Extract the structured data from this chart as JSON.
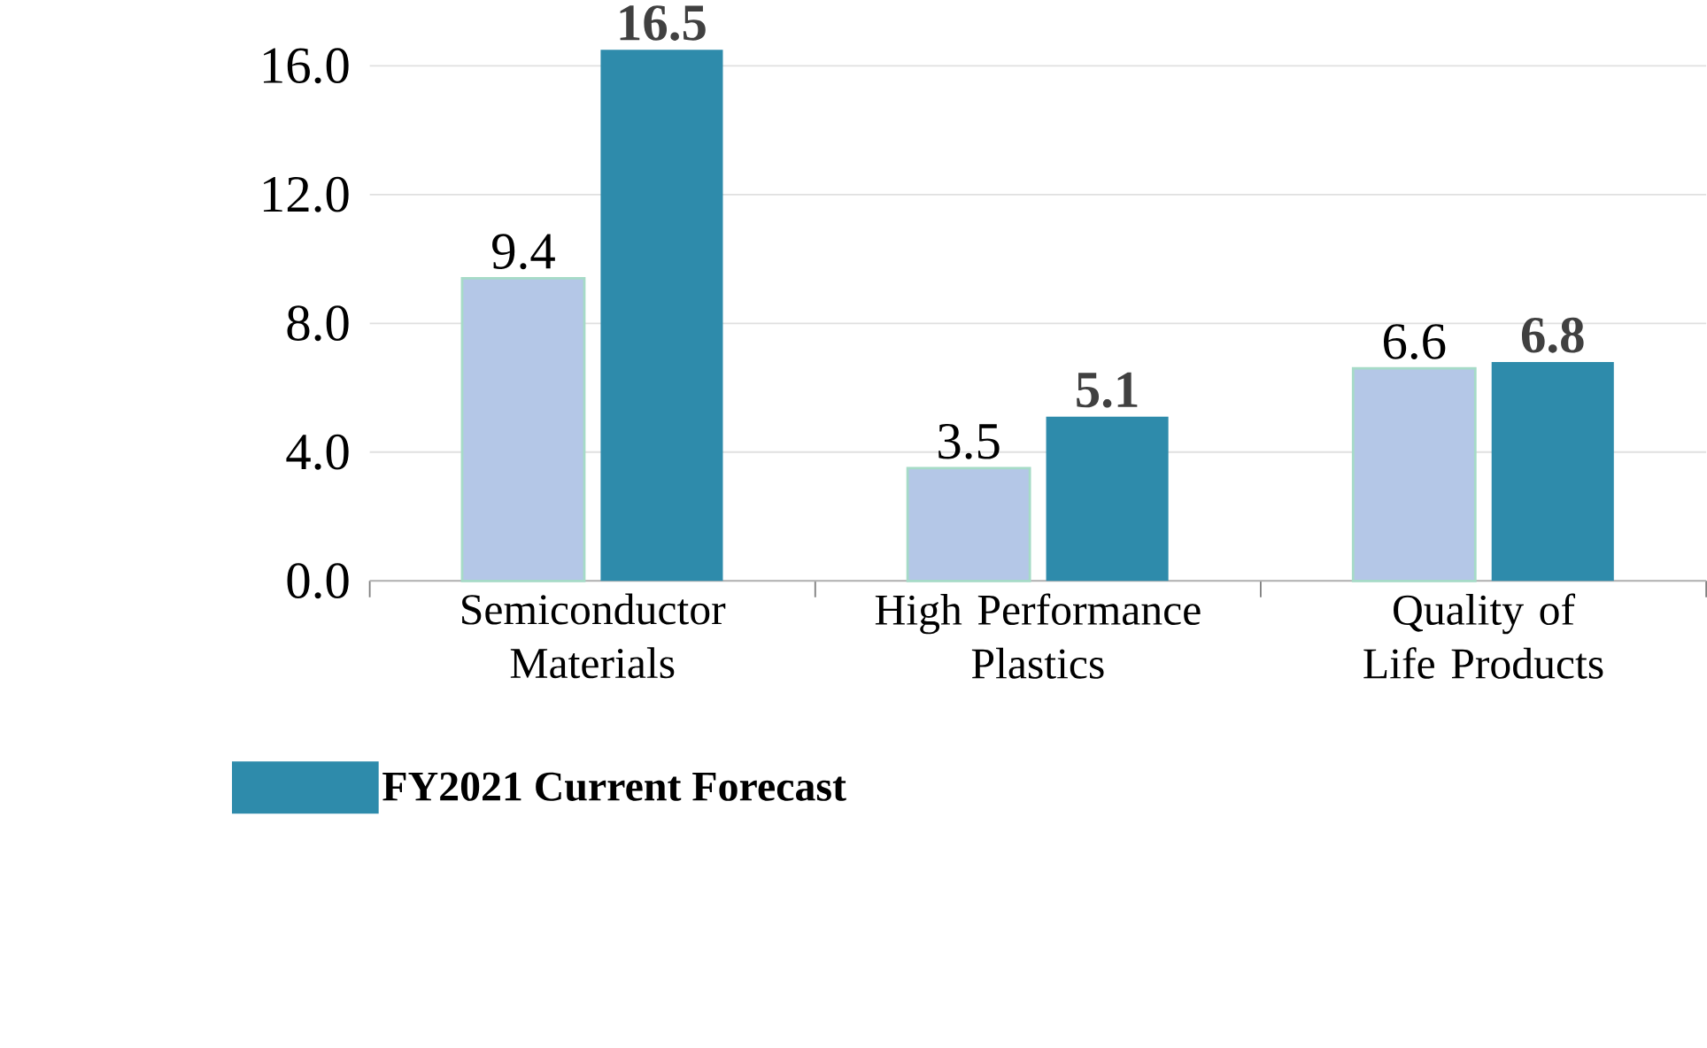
{
  "chart_data": {
    "type": "bar",
    "categories": [
      "Semiconductor Materials",
      "High Performance Plastics",
      "Quality of Life Products"
    ],
    "series": [
      {
        "color": "#b4c7e7",
        "values": [
          9.4,
          3.5,
          6.6
        ]
      },
      {
        "name": "FY2021 Current Forecast",
        "color": "#2e8bab",
        "values": [
          16.5,
          5.1,
          6.8
        ]
      }
    ],
    "ylim": [
      0,
      16.5
    ],
    "yticks": [
      {
        "value": 0,
        "label": "0.0"
      },
      {
        "value": 4,
        "label": "4.0"
      },
      {
        "value": 8,
        "label": "8.0"
      },
      {
        "value": 12,
        "label": "12.0"
      },
      {
        "value": 16,
        "label": "16.0"
      }
    ],
    "grid": "y",
    "legend": "bottom left",
    "data_labels": true
  }
}
